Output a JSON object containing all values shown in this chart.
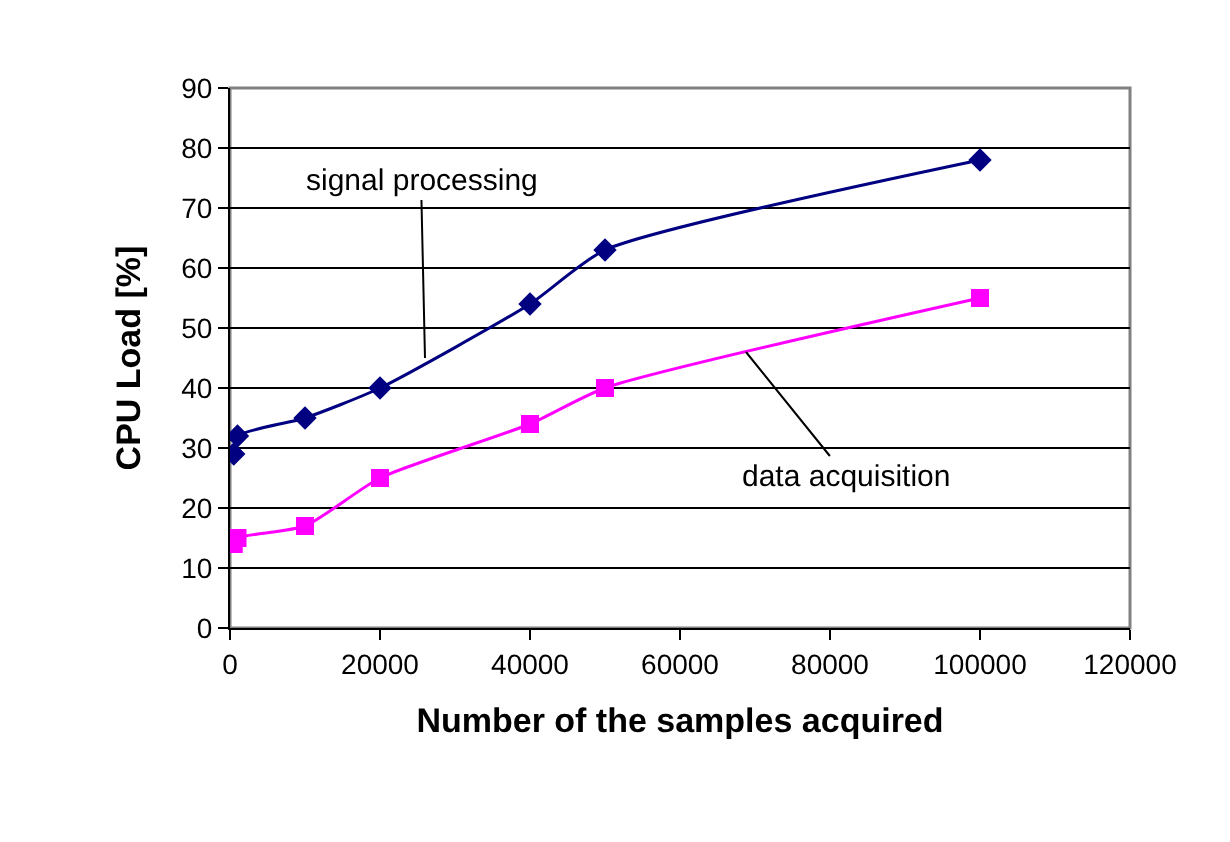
{
  "chart_data": {
    "type": "line",
    "xlabel": "Number of the samples acquired",
    "ylabel": "CPU Load [%]",
    "series": [
      {
        "name": null,
        "color": "#000080",
        "marker": "diamond",
        "x": [
          500,
          1000,
          10000,
          20000,
          40000,
          50000,
          100000
        ],
        "values": [
          29,
          32,
          35,
          40,
          54,
          63,
          78
        ]
      },
      {
        "name": null,
        "color": "#ff00ff",
        "marker": "square",
        "x": [
          500,
          1000,
          10000,
          20000,
          40000,
          50000,
          100000
        ],
        "values": [
          14,
          15,
          17,
          25,
          34,
          40,
          55
        ]
      }
    ],
    "xlim": [
      0,
      120000
    ],
    "xticks": [
      0,
      20000,
      40000,
      60000,
      80000,
      100000,
      120000
    ],
    "ylim": [
      0,
      90
    ],
    "yticks": [
      0,
      10,
      20,
      30,
      40,
      50,
      60,
      70,
      80,
      90
    ],
    "grid": "y",
    "annotations": [
      {
        "text": "signal processing",
        "x": 26000,
        "y": 45
      },
      {
        "text": "data acquisition",
        "x": 68800,
        "y": 46
      }
    ]
  }
}
